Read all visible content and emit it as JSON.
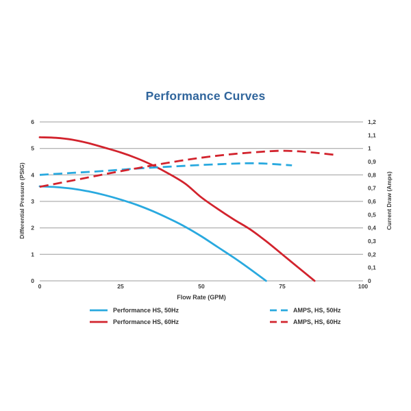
{
  "page": {
    "title": "Performance Curves",
    "title_color": "#30659c",
    "background": "#ffffff"
  },
  "colors": {
    "cyan": "#29a9df",
    "red": "#d2232d",
    "grid": "#9b9b9b",
    "text": "#3a3a3a"
  },
  "chart_data": {
    "type": "line",
    "title": "Performance Curves",
    "xlabel": "Flow Rate (GPM)",
    "ylabel_left": "Differential Pressure (PSIG)",
    "ylabel_right": "Current Draw (Amps)",
    "xlim": [
      0,
      100
    ],
    "ylim_left": [
      0,
      6
    ],
    "ylim_right": [
      0,
      1.2
    ],
    "x_ticks": [
      "0",
      "25",
      "50",
      "75",
      "100"
    ],
    "x_tick_values": [
      0,
      25,
      50,
      75,
      100
    ],
    "y_left_ticks": [
      "0",
      "1",
      "2",
      "3",
      "4",
      "5",
      "6"
    ],
    "y_left_tick_values": [
      0,
      1,
      2,
      3,
      4,
      5,
      6
    ],
    "y_right_ticks": [
      "0",
      "0,1",
      "0,2",
      "0,3",
      "0,4",
      "0,5",
      "0,6",
      "0,7",
      "0,8",
      "0,9",
      "1",
      "1,1",
      "1,2"
    ],
    "y_right_tick_values": [
      0,
      0.1,
      0.2,
      0.3,
      0.4,
      0.5,
      0.6,
      0.7,
      0.8,
      0.9,
      1.0,
      1.1,
      1.2
    ],
    "grid": "horizontal",
    "legend_position": "bottom",
    "series": [
      {
        "name": "Performance HS, 50Hz",
        "axis": "left",
        "style": "solid",
        "color": "#29a9df",
        "x": [
          0,
          5,
          10,
          15,
          20,
          25,
          30,
          35,
          40,
          45,
          50,
          55,
          60,
          65,
          70
        ],
        "y": [
          3.57,
          3.54,
          3.48,
          3.38,
          3.24,
          3.07,
          2.87,
          2.63,
          2.35,
          2.04,
          1.68,
          1.28,
          0.88,
          0.45,
          0
        ]
      },
      {
        "name": "Performance HS, 60Hz",
        "axis": "left",
        "style": "solid",
        "color": "#d2232d",
        "x": [
          0,
          5,
          10,
          15,
          20,
          25,
          30,
          35,
          40,
          45,
          50,
          55,
          60,
          65,
          70,
          75,
          80,
          85
        ],
        "y": [
          5.42,
          5.4,
          5.33,
          5.2,
          5.03,
          4.85,
          4.63,
          4.36,
          4.04,
          3.67,
          3.15,
          2.72,
          2.32,
          1.95,
          1.5,
          1.0,
          0.5,
          0
        ]
      },
      {
        "name": "AMPS, HS, 50Hz",
        "axis": "right",
        "style": "dashed",
        "color": "#29a9df",
        "x": [
          0,
          10,
          20,
          30,
          40,
          50,
          60,
          65,
          70,
          78
        ],
        "y": [
          0.8,
          0.815,
          0.83,
          0.848,
          0.862,
          0.875,
          0.885,
          0.888,
          0.885,
          0.872
        ]
      },
      {
        "name": "AMPS, HS, 60Hz",
        "axis": "right",
        "style": "dashed",
        "color": "#d2232d",
        "x": [
          0,
          10,
          20,
          30,
          40,
          50,
          60,
          70,
          75,
          80,
          85,
          91
        ],
        "y": [
          0.71,
          0.757,
          0.805,
          0.85,
          0.893,
          0.93,
          0.958,
          0.977,
          0.982,
          0.978,
          0.968,
          0.952
        ]
      }
    ]
  },
  "legend": {
    "items": [
      {
        "label": "Performance HS, 50Hz"
      },
      {
        "label": "Performance HS, 60Hz"
      },
      {
        "label": "AMPS, HS, 50Hz"
      },
      {
        "label": "AMPS, HS, 60Hz"
      }
    ]
  }
}
